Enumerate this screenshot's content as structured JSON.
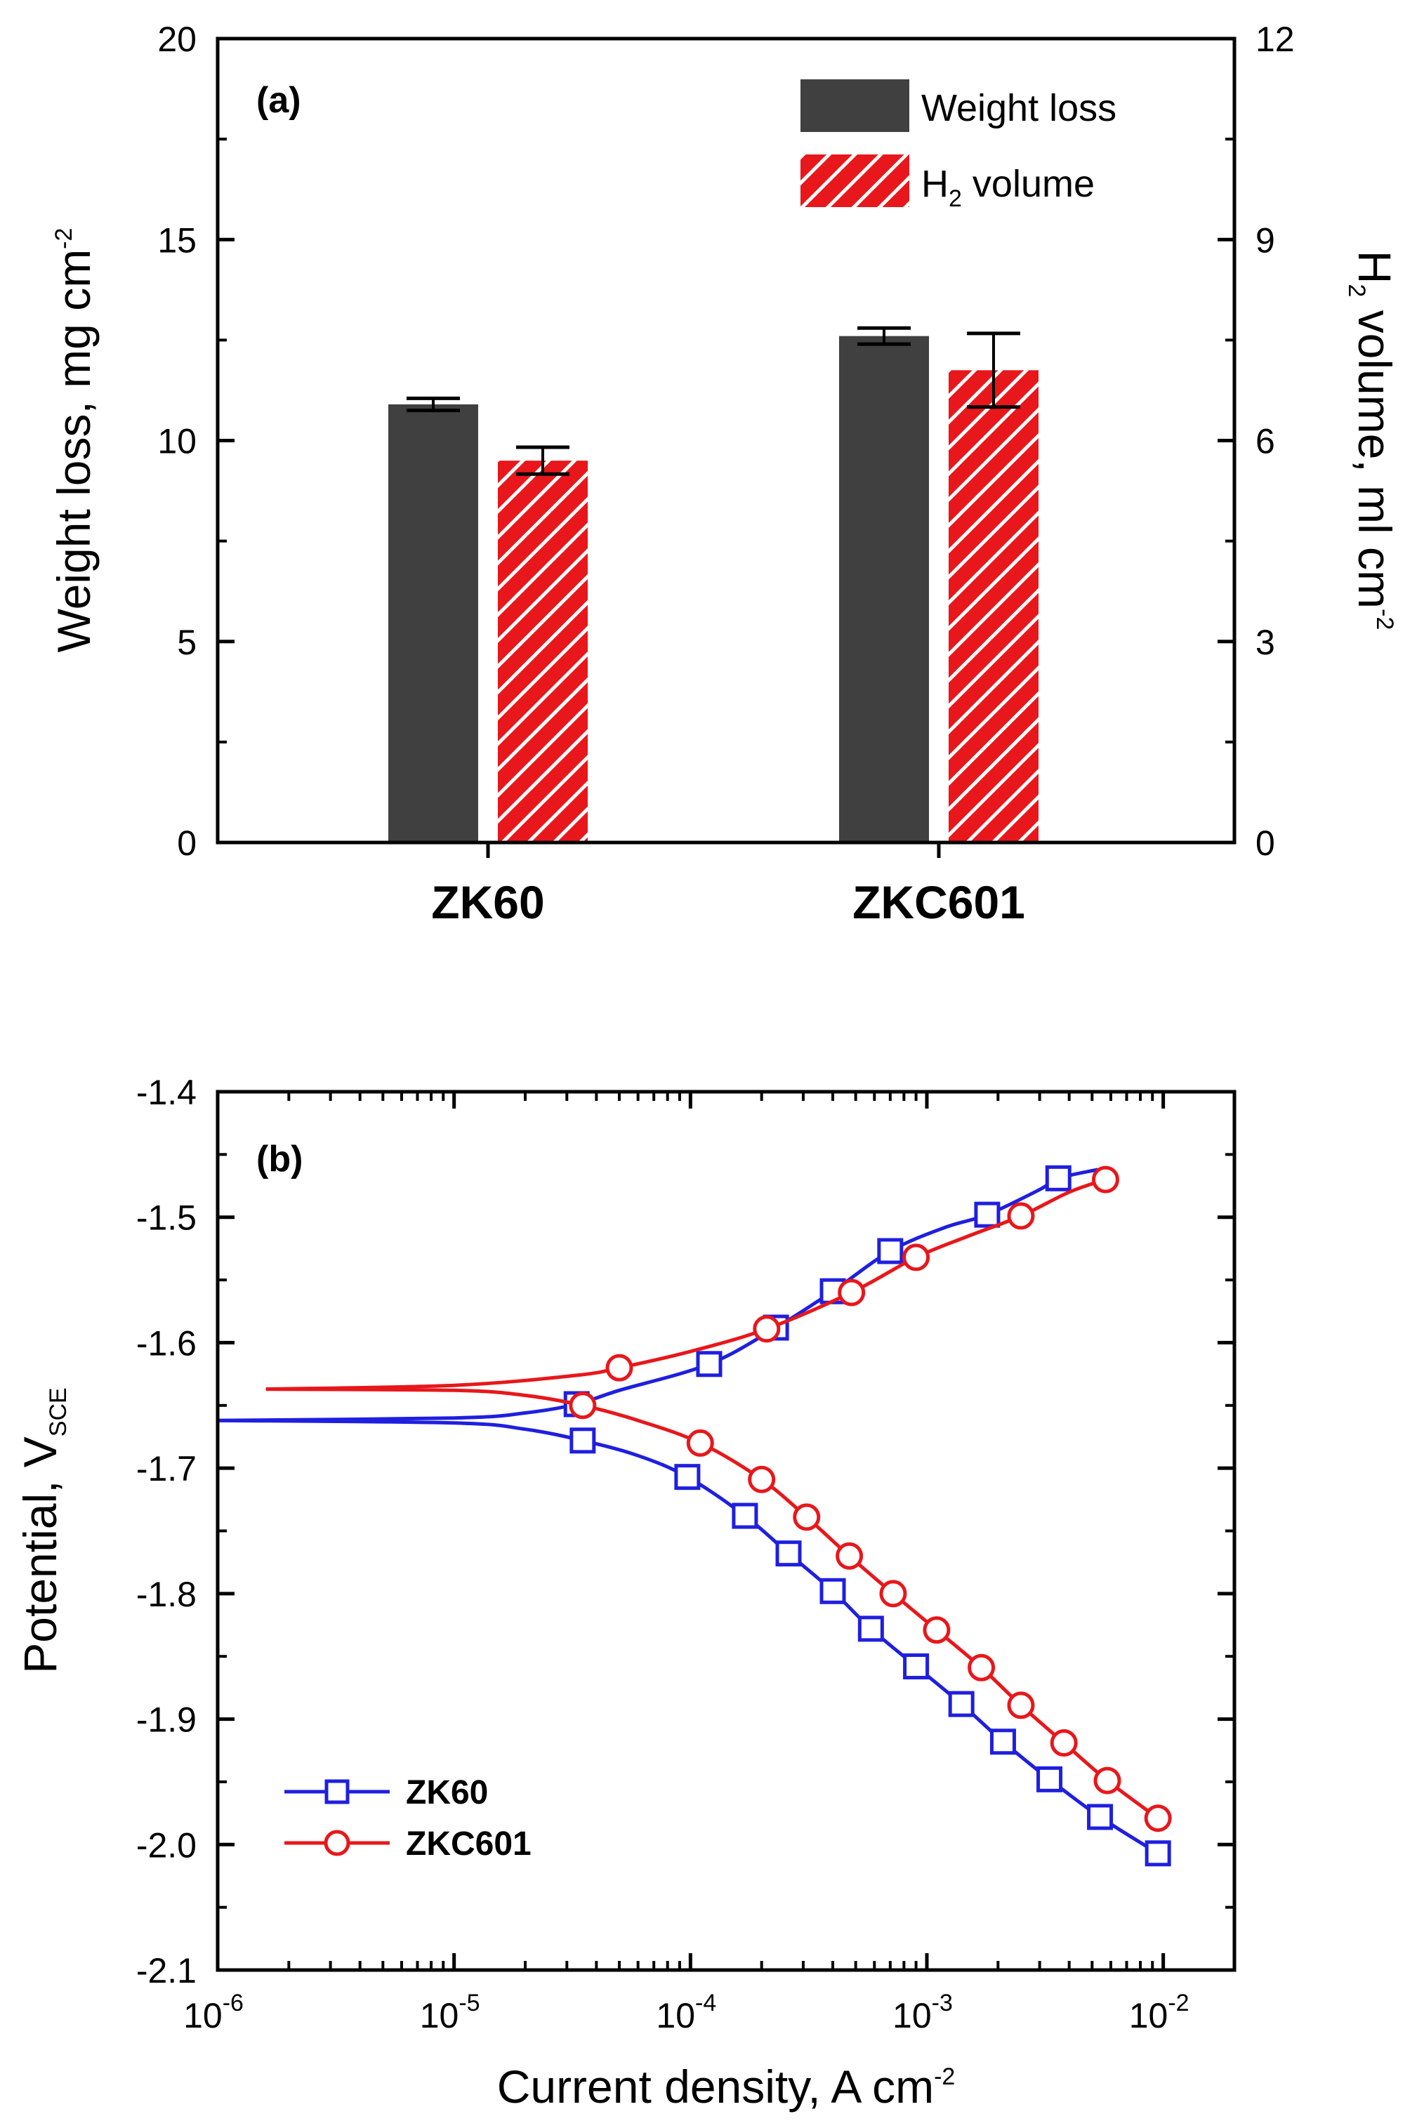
{
  "chart_data": [
    {
      "type": "bar",
      "panel_label": "(a)",
      "categories": [
        "ZK60",
        "ZKC601"
      ],
      "series": [
        {
          "name": "Weight loss",
          "axis": "left",
          "color": "#404040",
          "values": [
            10.9,
            12.6
          ],
          "errors": [
            0.15,
            0.2
          ]
        },
        {
          "name": "H2 volume",
          "name_main": "H",
          "name_sub": "2",
          "name_rest": " volume",
          "axis": "right",
          "color": "#e8171b",
          "pattern": "hatched",
          "values": [
            5.7,
            7.05
          ],
          "errors": [
            0.2,
            0.55
          ]
        }
      ],
      "ylabel_left": {
        "main": "Weight loss, mg cm",
        "sup": "-2"
      },
      "ylabel_right": {
        "main_a": "H",
        "sub": "2",
        "main_b": " volume, ml cm",
        "sup": "-2"
      },
      "ylim_left": [
        0,
        20
      ],
      "ylim_right": [
        0,
        12
      ],
      "yticks_left": [
        0,
        5,
        10,
        15,
        20
      ],
      "yticks_right": [
        0,
        3,
        6,
        9,
        12
      ],
      "legend_position": "top-right"
    },
    {
      "type": "line",
      "panel_label": "(b)",
      "xscale": "log",
      "xlim": [
        1e-06,
        0.02
      ],
      "ylim": [
        -2.1,
        -1.4
      ],
      "xticks": [
        {
          "base": "10",
          "exp": "-6",
          "value": 1e-06
        },
        {
          "base": "10",
          "exp": "-5",
          "value": 1e-05
        },
        {
          "base": "10",
          "exp": "-4",
          "value": 0.0001
        },
        {
          "base": "10",
          "exp": "-3",
          "value": 0.001
        },
        {
          "base": "10",
          "exp": "-2",
          "value": 0.01
        }
      ],
      "yticks": [
        "-1.4",
        "-1.5",
        "-1.6",
        "-1.7",
        "-1.8",
        "-1.9",
        "-2.0",
        "-2.1"
      ],
      "ytick_values": [
        -1.4,
        -1.5,
        -1.6,
        -1.7,
        -1.8,
        -1.9,
        -2.0,
        -2.1
      ],
      "xlabel": {
        "main": "Current density, A cm",
        "sup": "-2"
      },
      "ylabel": {
        "main": "Potential, V",
        "sub": "SCE"
      },
      "legend_position": "bottom-left",
      "series": [
        {
          "name": "ZK60",
          "color": "#1f1fe0",
          "marker": "square",
          "anodic": [
            [
              1e-06,
              -1.662
            ],
            [
              1e-05,
              -1.66
            ],
            [
              2e-05,
              -1.656
            ],
            [
              3.3e-05,
              -1.649
            ],
            [
              5e-05,
              -1.638
            ],
            [
              0.00012,
              -1.617
            ],
            [
              0.00023,
              -1.588
            ],
            [
              0.0004,
              -1.559
            ],
            [
              0.0007,
              -1.527
            ],
            [
              0.0012,
              -1.508
            ],
            [
              0.0018,
              -1.498
            ],
            [
              0.003,
              -1.478
            ],
            [
              0.0036,
              -1.469
            ],
            [
              0.0053,
              -1.462
            ]
          ],
          "anodic_markers": [
            [
              3.3e-05,
              -1.649
            ],
            [
              0.00012,
              -1.617
            ],
            [
              0.00023,
              -1.588
            ],
            [
              0.0004,
              -1.559
            ],
            [
              0.0007,
              -1.527
            ],
            [
              0.0018,
              -1.498
            ],
            [
              0.0036,
              -1.469
            ]
          ],
          "cathodic": [
            [
              1e-06,
              -1.662
            ],
            [
              1e-05,
              -1.664
            ],
            [
              2e-05,
              -1.669
            ],
            [
              3.5e-05,
              -1.678
            ],
            [
              6e-05,
              -1.69
            ],
            [
              9.7e-05,
              -1.707
            ],
            [
              0.00017,
              -1.738
            ],
            [
              0.00026,
              -1.768
            ],
            [
              0.0004,
              -1.798
            ],
            [
              0.00058,
              -1.828
            ],
            [
              0.0009,
              -1.858
            ],
            [
              0.0014,
              -1.888
            ],
            [
              0.0021,
              -1.918
            ],
            [
              0.0033,
              -1.948
            ],
            [
              0.0054,
              -1.978
            ],
            [
              0.0095,
              -2.007
            ]
          ],
          "cathodic_markers": [
            [
              3.5e-05,
              -1.678
            ],
            [
              9.7e-05,
              -1.707
            ],
            [
              0.00017,
              -1.738
            ],
            [
              0.00026,
              -1.768
            ],
            [
              0.0004,
              -1.798
            ],
            [
              0.00058,
              -1.828
            ],
            [
              0.0009,
              -1.858
            ],
            [
              0.0014,
              -1.888
            ],
            [
              0.0021,
              -1.918
            ],
            [
              0.0033,
              -1.948
            ],
            [
              0.0054,
              -1.978
            ],
            [
              0.0095,
              -2.007
            ]
          ]
        },
        {
          "name": "ZKC601",
          "color": "#e8171b",
          "marker": "circle",
          "anodic": [
            [
              1.6e-06,
              -1.637
            ],
            [
              1e-05,
              -1.634
            ],
            [
              3.3e-05,
              -1.626
            ],
            [
              5e-05,
              -1.62
            ],
            [
              0.0001,
              -1.607
            ],
            [
              0.00021,
              -1.589
            ],
            [
              0.00048,
              -1.56
            ],
            [
              0.0009,
              -1.532
            ],
            [
              0.0015,
              -1.515
            ],
            [
              0.0025,
              -1.499
            ],
            [
              0.004,
              -1.48
            ],
            [
              0.0057,
              -1.47
            ]
          ],
          "anodic_markers": [
            [
              5e-05,
              -1.62
            ],
            [
              0.00021,
              -1.589
            ],
            [
              0.00048,
              -1.56
            ],
            [
              0.0009,
              -1.532
            ],
            [
              0.0025,
              -1.499
            ],
            [
              0.0057,
              -1.47
            ]
          ],
          "cathodic": [
            [
              1.6e-06,
              -1.637
            ],
            [
              1e-05,
              -1.638
            ],
            [
              2e-05,
              -1.642
            ],
            [
              3.5e-05,
              -1.65
            ],
            [
              6e-05,
              -1.662
            ],
            [
              0.00011,
              -1.68
            ],
            [
              0.0002,
              -1.709
            ],
            [
              0.00031,
              -1.739
            ],
            [
              0.00047,
              -1.77
            ],
            [
              0.00072,
              -1.8
            ],
            [
              0.0011,
              -1.829
            ],
            [
              0.0017,
              -1.859
            ],
            [
              0.0025,
              -1.889
            ],
            [
              0.0038,
              -1.919
            ],
            [
              0.0058,
              -1.949
            ],
            [
              0.0095,
              -1.979
            ]
          ],
          "cathodic_markers": [
            [
              3.5e-05,
              -1.65
            ],
            [
              0.00011,
              -1.68
            ],
            [
              0.0002,
              -1.709
            ],
            [
              0.00031,
              -1.739
            ],
            [
              0.00047,
              -1.77
            ],
            [
              0.00072,
              -1.8
            ],
            [
              0.0011,
              -1.829
            ],
            [
              0.0017,
              -1.859
            ],
            [
              0.0025,
              -1.889
            ],
            [
              0.0038,
              -1.919
            ],
            [
              0.0058,
              -1.949
            ],
            [
              0.0095,
              -1.979
            ]
          ]
        }
      ]
    }
  ]
}
